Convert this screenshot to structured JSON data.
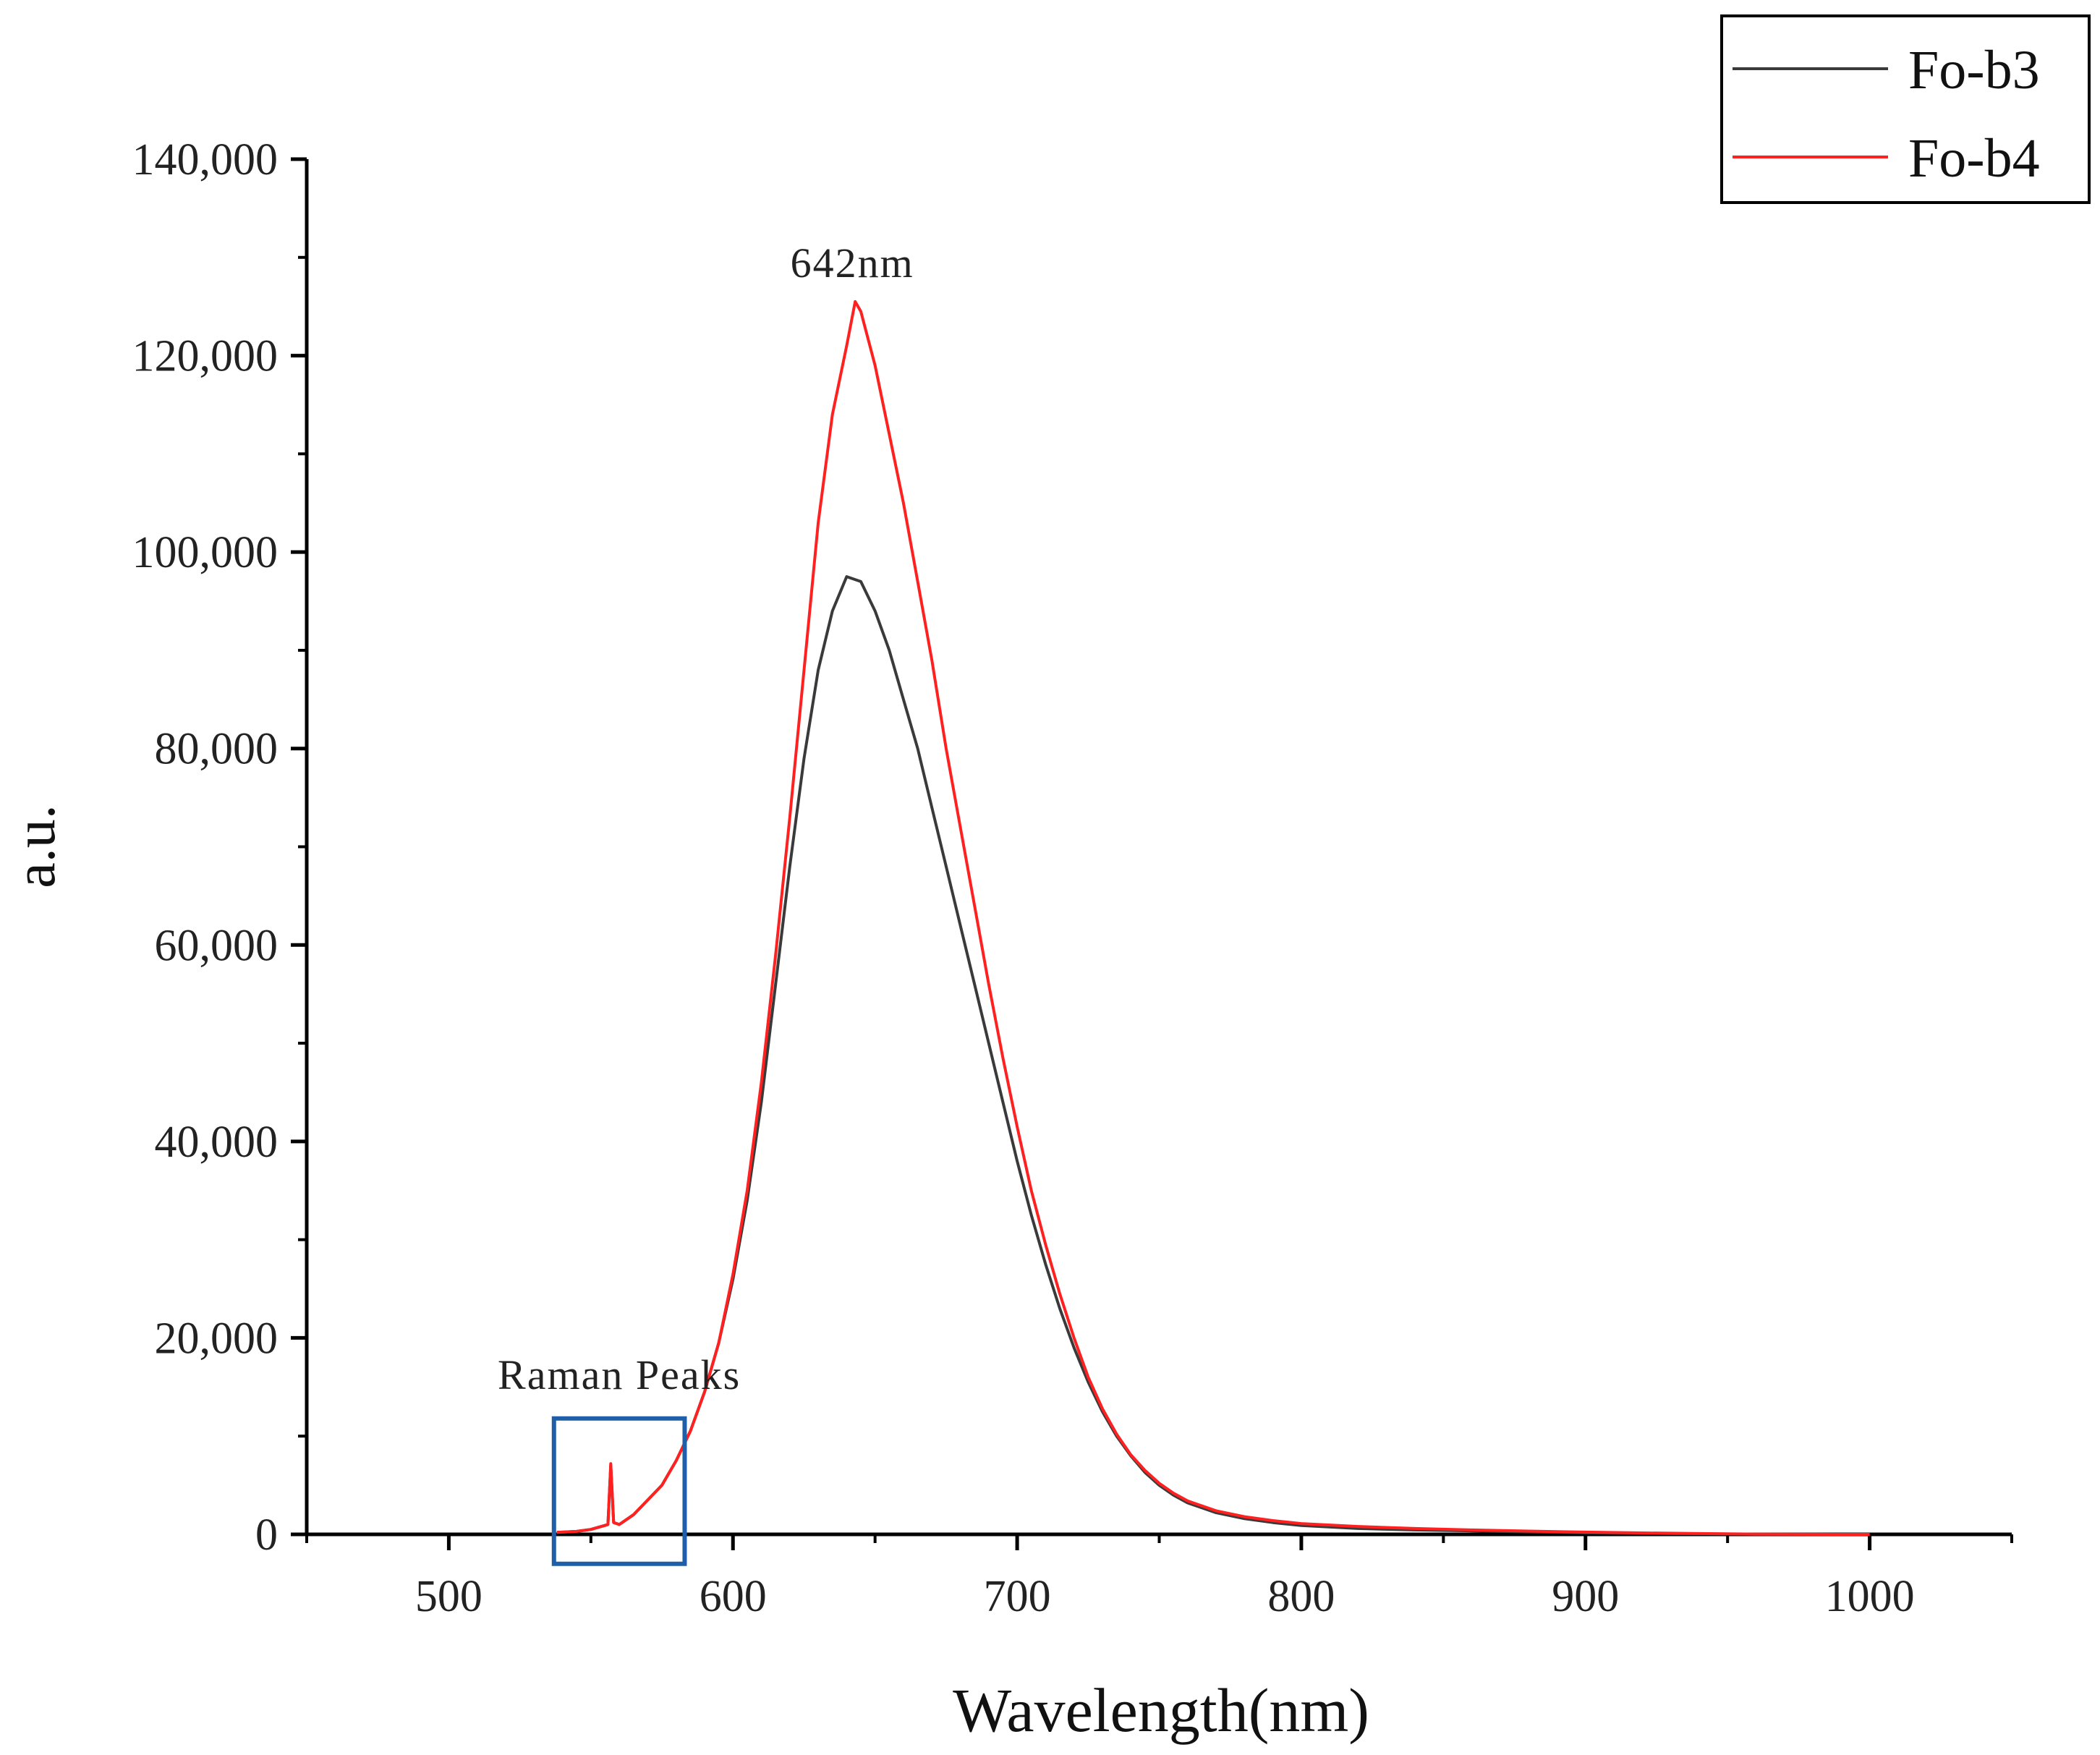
{
  "chart_data": {
    "type": "line",
    "xlabel": "Wavelength(nm)",
    "ylabel": "a.u.",
    "xlim": [
      450,
      1050
    ],
    "ylim": [
      0,
      140000
    ],
    "x_ticks": [
      500,
      600,
      700,
      800,
      900,
      1000
    ],
    "x_tick_labels": [
      "500",
      "600",
      "700",
      "800",
      "900",
      "1000"
    ],
    "y_ticks": [
      0,
      20000,
      40000,
      60000,
      80000,
      100000,
      120000,
      140000
    ],
    "y_tick_labels": [
      "0",
      "20,000",
      "40,000",
      "60,000",
      "80,000",
      "100,000",
      "120,000",
      "140,000"
    ],
    "grid": false,
    "legend_position": "top-right",
    "series": [
      {
        "name": "Fo-b3",
        "color": "#3a3a3a",
        "x": [
          538,
          545,
          550,
          556,
          557,
          558,
          560,
          565,
          570,
          575,
          580,
          585,
          590,
          595,
          600,
          605,
          610,
          615,
          620,
          625,
          630,
          635,
          640,
          645,
          650,
          655,
          660,
          665,
          670,
          675,
          680,
          685,
          690,
          695,
          700,
          705,
          710,
          715,
          720,
          725,
          730,
          735,
          740,
          745,
          750,
          755,
          760,
          770,
          780,
          790,
          800,
          820,
          840,
          860,
          880,
          900,
          920,
          940,
          960,
          980,
          1000
        ],
        "y": [
          200,
          300,
          500,
          1000,
          7000,
          1200,
          1000,
          2000,
          3500,
          5000,
          7500,
          10500,
          14500,
          19500,
          26000,
          34000,
          44000,
          56000,
          68000,
          79000,
          88000,
          94000,
          97500,
          97000,
          94000,
          90000,
          85000,
          80000,
          74000,
          68000,
          62000,
          56000,
          50000,
          44000,
          38000,
          32500,
          27500,
          23000,
          19000,
          15500,
          12500,
          10000,
          8000,
          6300,
          5000,
          4000,
          3200,
          2200,
          1600,
          1200,
          900,
          600,
          450,
          350,
          250,
          150,
          100,
          50,
          20,
          5,
          0
        ]
      },
      {
        "name": "Fo-b4",
        "color": "#ff2020",
        "x": [
          538,
          545,
          550,
          556,
          557,
          558,
          560,
          565,
          570,
          575,
          580,
          585,
          590,
          595,
          600,
          605,
          610,
          615,
          620,
          625,
          630,
          635,
          640,
          643,
          645,
          650,
          655,
          660,
          665,
          670,
          675,
          680,
          685,
          690,
          695,
          700,
          705,
          710,
          715,
          720,
          725,
          730,
          735,
          740,
          745,
          750,
          755,
          760,
          770,
          780,
          790,
          800,
          820,
          840,
          860,
          880,
          900,
          920,
          940,
          960,
          980,
          1000
        ],
        "y": [
          200,
          300,
          500,
          1000,
          7200,
          1200,
          1000,
          2000,
          3500,
          5000,
          7500,
          10500,
          14500,
          19500,
          26500,
          35000,
          46000,
          59000,
          73000,
          88000,
          103000,
          114000,
          121000,
          125500,
          124500,
          119000,
          112000,
          105000,
          97000,
          89000,
          80000,
          72000,
          64000,
          56000,
          48500,
          41500,
          35000,
          29500,
          24500,
          20000,
          16000,
          12800,
          10200,
          8100,
          6500,
          5200,
          4200,
          3400,
          2400,
          1800,
          1400,
          1100,
          800,
          600,
          450,
          330,
          230,
          150,
          80,
          30,
          10,
          0
        ]
      }
    ],
    "annotations": [
      {
        "text": "642nm",
        "x": 642,
        "y": 128000
      },
      {
        "text": "Raman Peaks",
        "x": 560,
        "y": 14800
      }
    ],
    "highlight_box": {
      "x_range": [
        537,
        583
      ],
      "y_range": [
        -3000,
        11800
      ],
      "color": "#1f5fa8"
    }
  }
}
